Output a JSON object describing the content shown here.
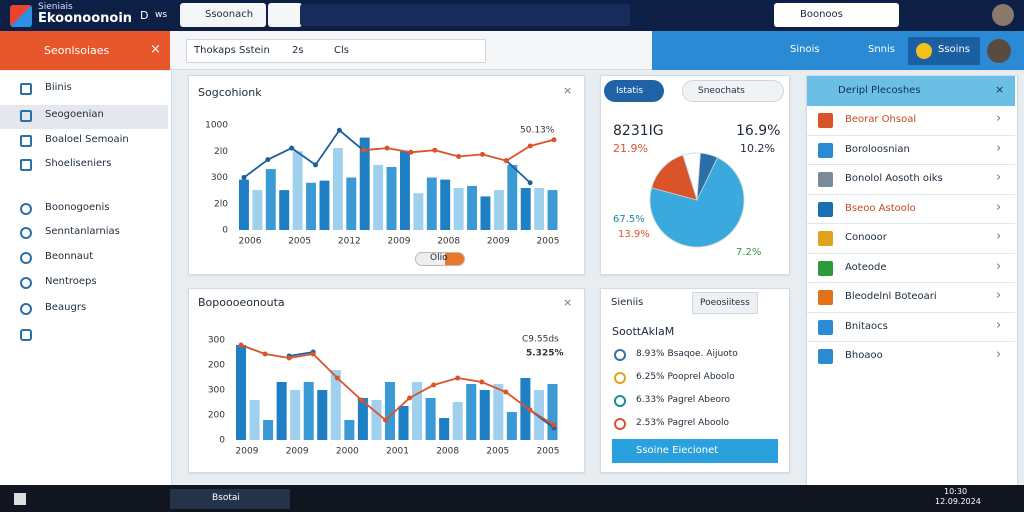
{
  "topbar": {
    "logo_top": "Sieniais",
    "logo_main": "Ekoonoonoin",
    "menu1": "D",
    "menu2": "ws",
    "tab": "Ssoonach",
    "search": "Boonoos"
  },
  "toolbar": {
    "section": "Seonlsoiaes",
    "tool1": "Thokaps Sstein",
    "tool2": "2s",
    "tool3": "Cls",
    "right1": "Sinois",
    "right2": "Snnis",
    "button": "Ssoins"
  },
  "sidebar": {
    "items": [
      "Biinis",
      "Seogoenian",
      "Boaloel Semoain",
      "Shoeliseniers"
    ],
    "items2": [
      "Boonogoenis",
      "Senntanlarnias",
      "Beonnaut",
      "Nentroeps",
      "Beaugrs"
    ]
  },
  "card1": {
    "title": "Sogcohionk",
    "y_labels": [
      "1000",
      "2l0",
      "300",
      "2l0",
      "0"
    ],
    "x_labels": [
      "2006",
      "2005",
      "2012",
      "2009",
      "2008",
      "2009",
      "2005"
    ],
    "annotation": "50.13%",
    "toggle": "Olio",
    "bar_colors": [
      "#1f7fc4",
      "#9fd0ee",
      "#3b9ad6"
    ],
    "bars": [
      48,
      38,
      58,
      38,
      75,
      45,
      47,
      78,
      50,
      88,
      62,
      60,
      75,
      35,
      50,
      48,
      40,
      42,
      32,
      38,
      62,
      40,
      40,
      38
    ],
    "line_blue": [
      50,
      67,
      78,
      62,
      95,
      76,
      null,
      null,
      null,
      null,
      null,
      66,
      45,
      null
    ],
    "line_orange": [
      null,
      null,
      null,
      null,
      null,
      76,
      78,
      74,
      76,
      70,
      72,
      66,
      80,
      86
    ]
  },
  "card2": {
    "title": "Bopoooeonouta",
    "y_labels": [
      "300",
      "200",
      "300",
      "200",
      "0"
    ],
    "x_labels": [
      "2009",
      "2009",
      "2000",
      "2001",
      "2008",
      "2005",
      "2005"
    ],
    "annotation1": "C9.55ds",
    "annotation2": "5.325%",
    "bar_colors": [
      "#1f7fc4",
      "#9fd0ee",
      "#3b9ad6"
    ],
    "bars": [
      95,
      40,
      20,
      58,
      50,
      58,
      50,
      70,
      20,
      42,
      40,
      58,
      34,
      58,
      42,
      22,
      38,
      56,
      50,
      56,
      28,
      62,
      50,
      56
    ],
    "line_blue": [
      null,
      null,
      84,
      88,
      null,
      null,
      null,
      null,
      null,
      null,
      null,
      null,
      30,
      12
    ],
    "line_orange": [
      95,
      86,
      82,
      86,
      62,
      40,
      20,
      42,
      55,
      62,
      58,
      48,
      30,
      15
    ]
  },
  "card3": {
    "button": "Istatis",
    "dropdown": "Sneochats",
    "stat1": "8231IG",
    "stat2": "21.9%",
    "stat3": "16.9%",
    "stat4": "10.2%",
    "label1": "67.5%",
    "label2": "13.9%",
    "label3": "7.2%",
    "slices": [
      {
        "value": 72,
        "color": "#3aa9dd"
      },
      {
        "value": 16,
        "color": "#d9542a"
      },
      {
        "value": 6,
        "color": "#ffffff"
      },
      {
        "value": 6,
        "color": "#2a6fa8"
      }
    ]
  },
  "card4": {
    "title": "Sieniis",
    "dropdown": "Poeosiitess",
    "subtitle": "SoottAklaM",
    "items": [
      "8.93% Bsaqoe. Aijuoto",
      "6.25% Pooprel Aboolo",
      "6.33% Pagrel Abeoro",
      "2.53% Pagrel Aboolo"
    ],
    "button": "Ssoine Eiecionet"
  },
  "panel": {
    "title": "Deripl Plecoshes",
    "items": [
      "Beorar Ohsoal",
      "Boroloosnian",
      "Bonolol Aosoth oiks",
      "Bseoo Astoolo",
      "Conooor",
      "Aoteode",
      "Bleodelnl Boteoari",
      "Bnitaocs",
      "Bhoaoo"
    ]
  },
  "taskbar": {
    "app": "Bsotai",
    "time": "10:30",
    "date": "12.09.2024"
  }
}
